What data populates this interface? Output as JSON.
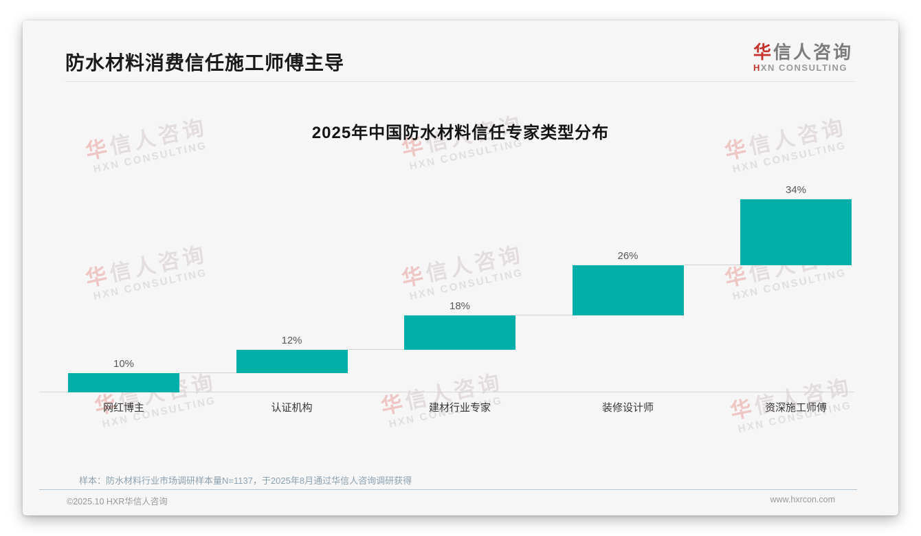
{
  "header": {
    "title": "防水材料消费信任施工师傅主导"
  },
  "logo": {
    "cn_first": "华",
    "cn_rest": "信人咨询",
    "en_first": "H",
    "en_rest": "XN CONSULTING"
  },
  "watermark": {
    "cn_first": "华",
    "cn_rest": "信人咨询",
    "en": "HXN CONSULTING"
  },
  "chart_data": {
    "type": "bar",
    "subtype": "waterfall-steps",
    "title": "2025年中国防水材料信任专家类型分布",
    "categories": [
      "网红博主",
      "认证机构",
      "建材行业专家",
      "装修设计师",
      "资深施工师傅"
    ],
    "values": [
      10,
      12,
      18,
      26,
      34
    ],
    "value_labels": [
      "10%",
      "12%",
      "18%",
      "26%",
      "34%"
    ],
    "cumulative_start": [
      0,
      10,
      22,
      40,
      66
    ],
    "unit": "%",
    "ylim": [
      0,
      100
    ],
    "xlabel": "",
    "ylabel": "",
    "grid": false,
    "legend": false,
    "bar_color": "#00b0a8",
    "value_label_color": "#595959",
    "connector_color": "#d2d2d2",
    "axis_color": "#d6d6d6"
  },
  "footer": {
    "source_note": "样本：防水材料行业市场调研样本量N=1137，于2025年8月通过华信人咨询调研获得",
    "copyright": "©2025.10 HXR华信人咨询",
    "website": "www.hxrcon.com"
  },
  "colors": {
    "accent_red": "#c5342c",
    "bar_teal": "#00b0a8",
    "card_bg": "#f6f6f7"
  }
}
